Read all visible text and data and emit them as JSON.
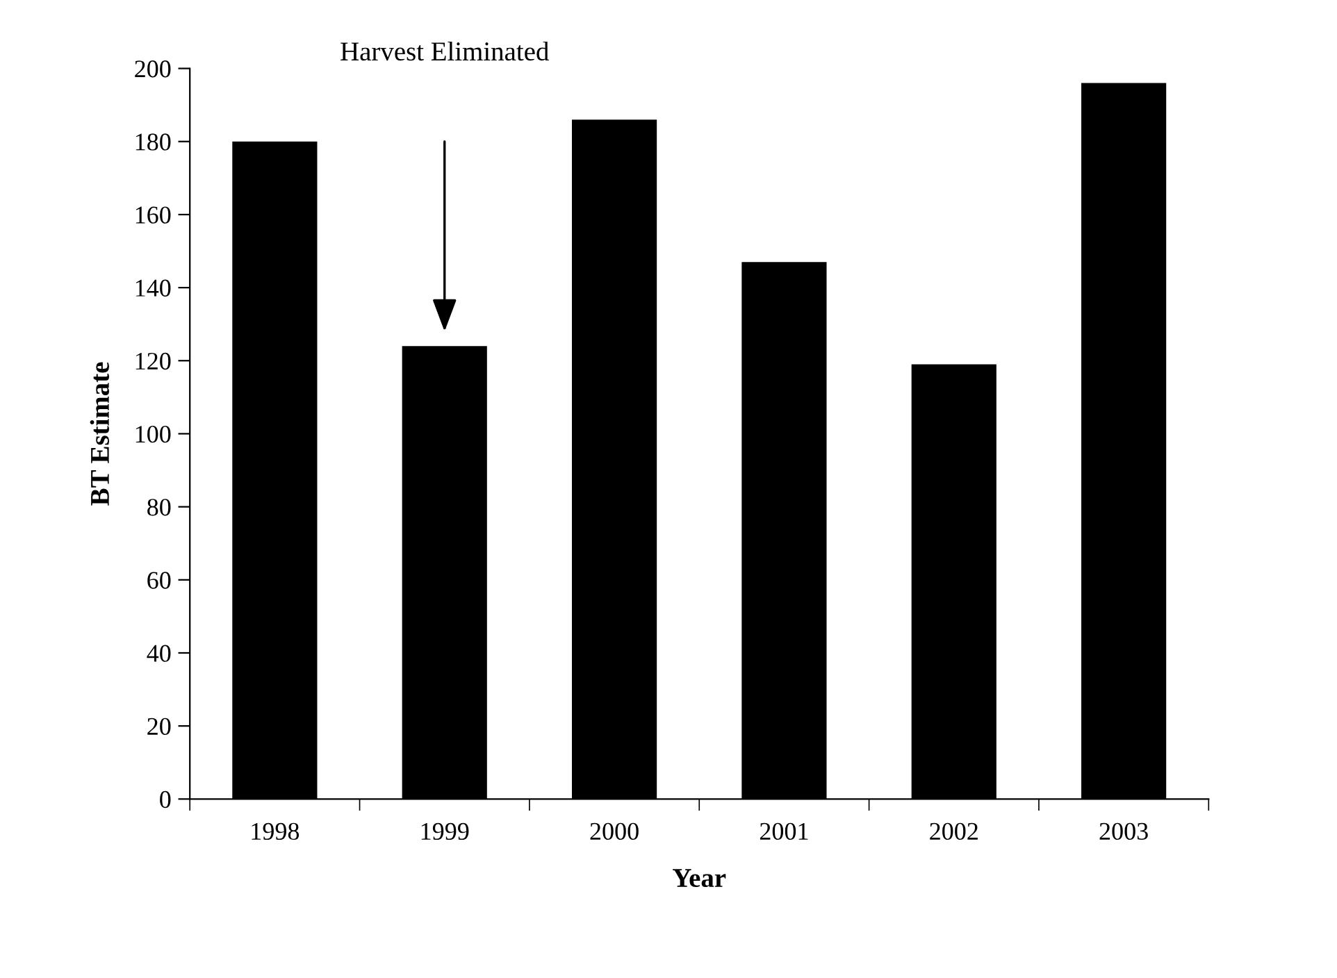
{
  "chart_data": {
    "type": "bar",
    "xlabel": "Year",
    "ylabel": "BT Estimate",
    "categories": [
      "1998",
      "1999",
      "2000",
      "2001",
      "2002",
      "2003"
    ],
    "values": [
      180,
      124,
      186,
      147,
      119,
      196
    ],
    "color": "#000000",
    "ylim": [
      0,
      200
    ],
    "yticks": [
      0,
      20,
      40,
      60,
      80,
      100,
      120,
      140,
      160,
      180,
      200
    ],
    "grid": false,
    "annotations": [
      "Harvest Eliminated"
    ]
  }
}
